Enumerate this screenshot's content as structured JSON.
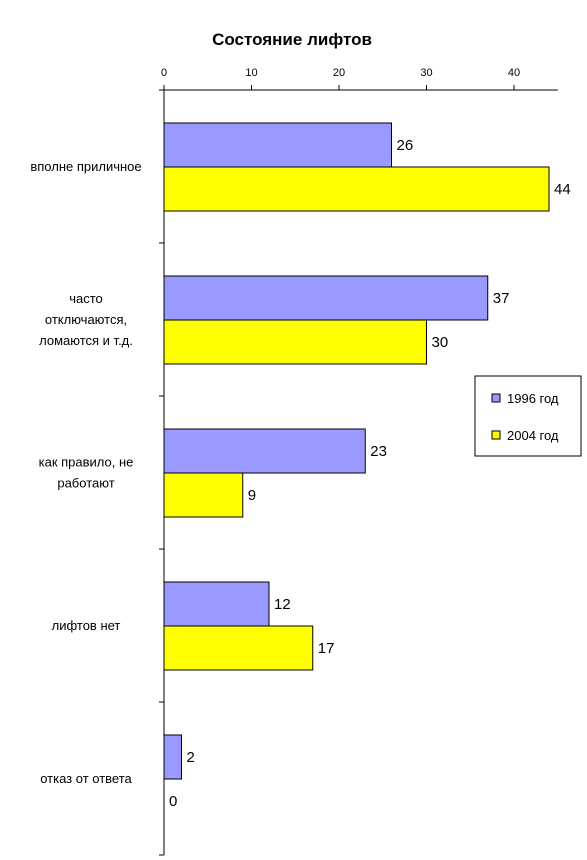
{
  "chart_data": {
    "type": "bar",
    "orientation": "horizontal",
    "title": "Состояние лифтов",
    "xlabel": "",
    "ylabel": "",
    "xlim": [
      0,
      45
    ],
    "x_ticks": [
      0,
      10,
      20,
      30,
      40
    ],
    "tick_labels": [
      "0",
      "10",
      "20",
      "30",
      "40"
    ],
    "x_axis_position": "top",
    "grid": false,
    "legend_position": "right",
    "categories": [
      [
        "вполне приличное"
      ],
      [
        "часто",
        "отключаются,",
        "ломаются и т.д."
      ],
      [
        "как правило, не",
        "работают"
      ],
      [
        "лифтов нет"
      ],
      [
        "отказ от ответа"
      ]
    ],
    "series": [
      {
        "name": "1996 год",
        "color": "#9999ff",
        "values": [
          26,
          37,
          23,
          12,
          2
        ]
      },
      {
        "name": "2004 год",
        "color": "#ffff00",
        "values": [
          44,
          30,
          9,
          17,
          0
        ]
      }
    ]
  }
}
